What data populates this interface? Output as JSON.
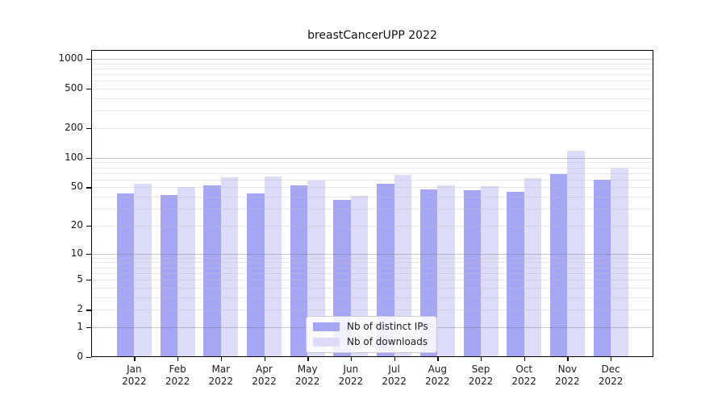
{
  "title": "breastCancerUPP 2022",
  "legend": {
    "items": [
      {
        "label": "Nb of distinct IPs",
        "color": "#a6a6f4"
      },
      {
        "label": "Nb of downloads",
        "color": "#dcdcf9"
      }
    ]
  },
  "colors": {
    "bar_distinct_ips": "#a6a6f4",
    "bar_downloads": "#dcdcf9",
    "grid_major": "#c9c9c9",
    "grid_minor": "#e4e4e4",
    "axis_frame": "#000000"
  },
  "x_axis": {
    "months": [
      "Jan",
      "Feb",
      "Mar",
      "Apr",
      "May",
      "Jun",
      "Jul",
      "Aug",
      "Sep",
      "Oct",
      "Nov",
      "Dec"
    ],
    "year": "2022"
  },
  "y_axis": {
    "tick_labels": [
      "0",
      "1",
      "2",
      "5",
      "10",
      "20",
      "50",
      "100",
      "200",
      "500",
      "1000"
    ]
  },
  "chart_data": {
    "type": "bar",
    "title": "breastCancerUPP 2022",
    "categories": [
      "Jan 2022",
      "Feb 2022",
      "Mar 2022",
      "Apr 2022",
      "May 2022",
      "Jun 2022",
      "Jul 2022",
      "Aug 2022",
      "Sep 2022",
      "Oct 2022",
      "Nov 2022",
      "Dec 2022"
    ],
    "series": [
      {
        "name": "Nb of distinct IPs",
        "color": "#a6a6f4",
        "values": [
          43,
          42,
          52,
          43,
          52,
          37,
          54,
          48,
          47,
          45,
          69,
          60
        ]
      },
      {
        "name": "Nb of downloads",
        "color": "#dcdcf9",
        "values": [
          54,
          50,
          63,
          64,
          59,
          41,
          67,
          52,
          51,
          62,
          118,
          78
        ]
      }
    ],
    "xlabel": "",
    "ylabel": "",
    "yscale": "log1p",
    "yticks": [
      0,
      1,
      2,
      5,
      10,
      20,
      50,
      100,
      200,
      500,
      1000
    ],
    "ylim": [
      0,
      1100
    ],
    "grid": "on",
    "legend_position": "lower-center"
  }
}
